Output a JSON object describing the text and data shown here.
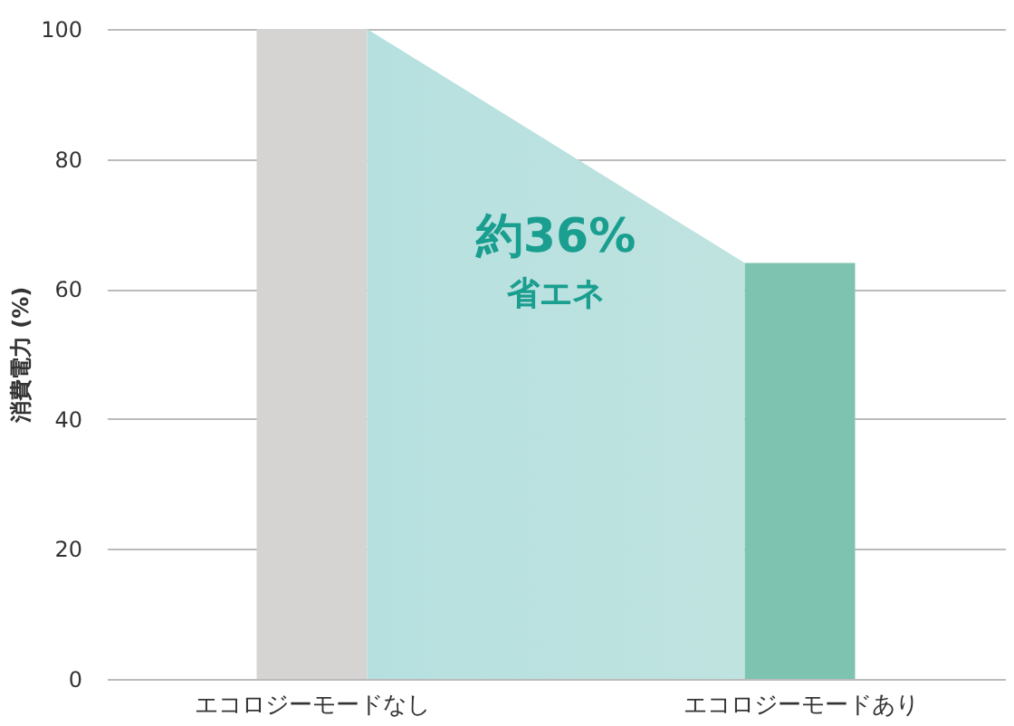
{
  "chart_data": {
    "type": "bar",
    "categories": [
      "エコロジーモードなし",
      "エコロジーモードあり"
    ],
    "series": [
      {
        "values": [
          100,
          64
        ],
        "colors": [
          "#d5d4d3",
          "#7ec3b0"
        ]
      },
      {
        "type": "area",
        "values": [
          100,
          64
        ],
        "color": "#bfe3df"
      }
    ],
    "ylabel": "消費電力 (%)",
    "ylim": [
      0,
      100
    ],
    "yticks": [
      0,
      20,
      40,
      60,
      80,
      100
    ],
    "grid": "y",
    "annotations": [
      "約36%",
      "省エネ"
    ]
  }
}
